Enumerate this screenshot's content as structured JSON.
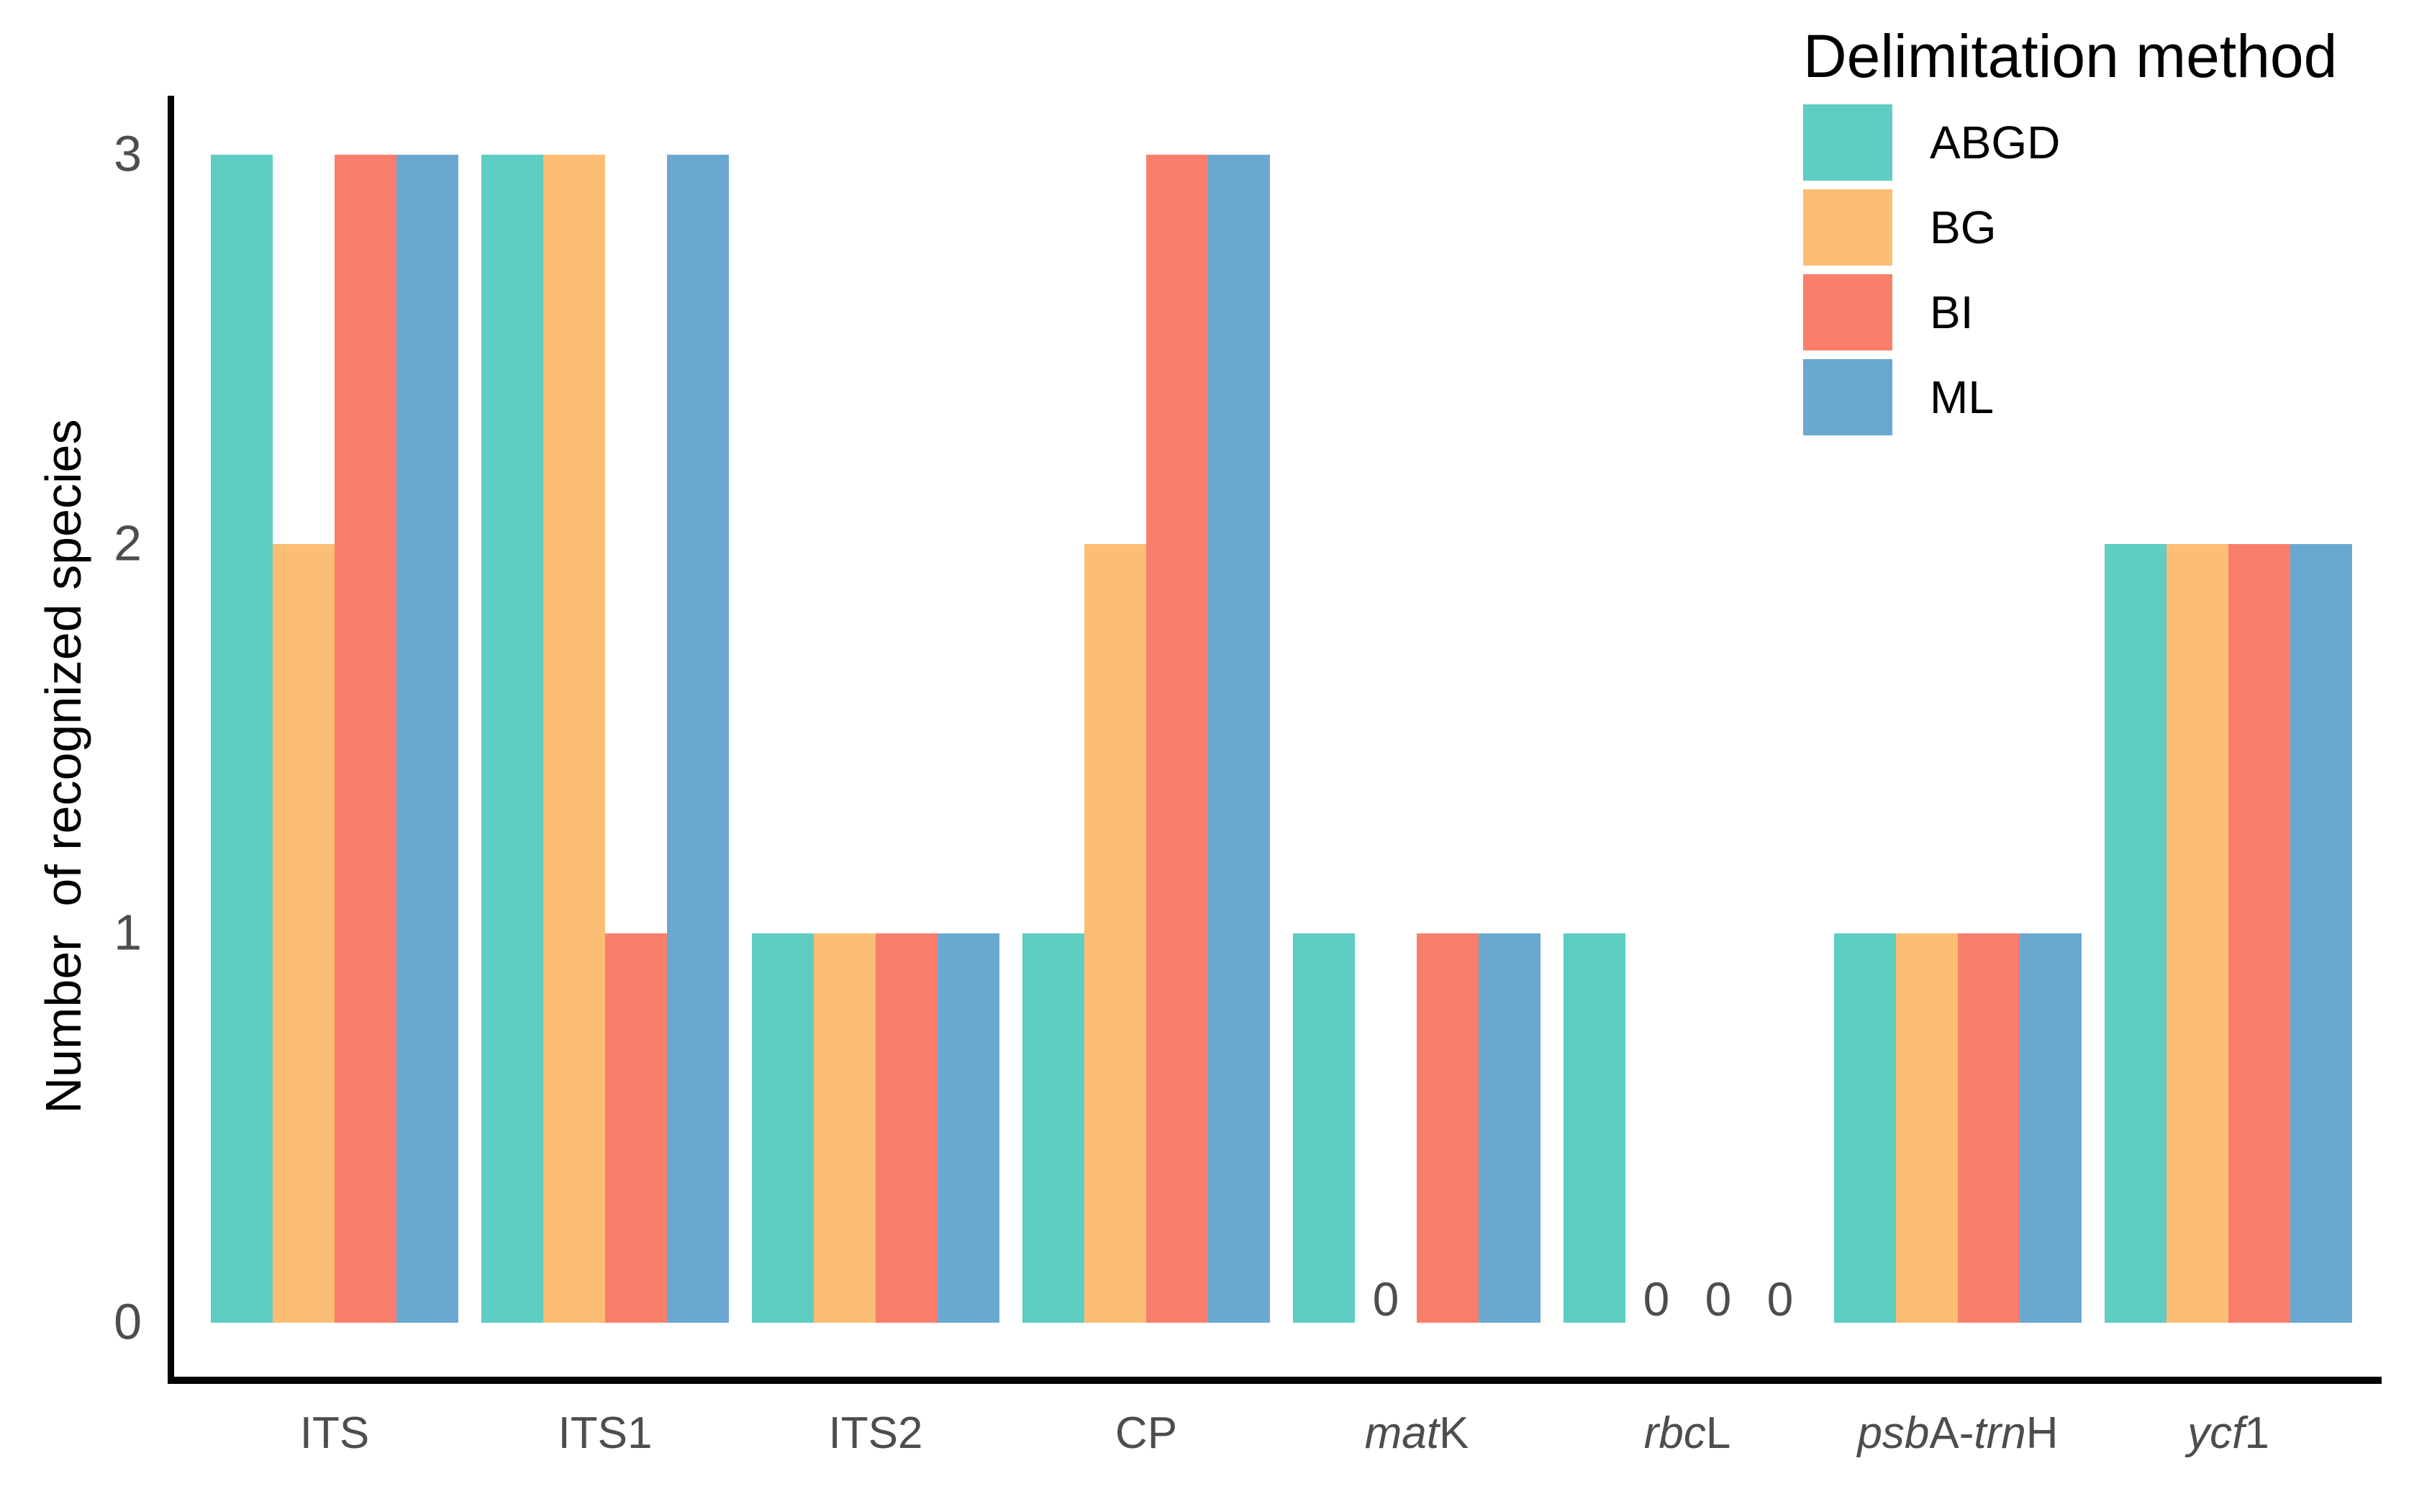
{
  "colors": {
    "background": "#FFFFFF",
    "axis_line": "#000000",
    "tick_text": "#4D4D4D",
    "x_label_text": "#4D4D4D",
    "zero_label_text": "#4D4D4D",
    "legend_text": "#000000",
    "series_abgd": "#5ECDC2",
    "series_bg": "#FCBD74",
    "series_bi": "#FA7E6C",
    "series_ml": "#6AA8D2"
  },
  "chart_data": {
    "type": "bar",
    "title": "",
    "xlabel": "",
    "ylabel": "Number  of recognized species",
    "ylim": [
      0,
      3
    ],
    "yticks": [
      0,
      1,
      2,
      3
    ],
    "grid": false,
    "legend_title": "Delimitation method",
    "legend_position": "top-right",
    "zero_label": "0",
    "categories": [
      "ITS",
      "ITS1",
      "ITS2",
      "CP",
      "matK",
      "rbcL",
      "psbA-trnH",
      "ycf1"
    ],
    "category_parts": [
      {
        "parts": [
          {
            "text": "ITS",
            "italic": false
          }
        ]
      },
      {
        "parts": [
          {
            "text": "ITS1",
            "italic": false
          }
        ]
      },
      {
        "parts": [
          {
            "text": "ITS2",
            "italic": false
          }
        ]
      },
      {
        "parts": [
          {
            "text": "CP",
            "italic": false
          }
        ]
      },
      {
        "parts": [
          {
            "text": "mat",
            "italic": true
          },
          {
            "text": "K",
            "italic": false
          }
        ]
      },
      {
        "parts": [
          {
            "text": "rbc",
            "italic": true
          },
          {
            "text": "L",
            "italic": false
          }
        ]
      },
      {
        "parts": [
          {
            "text": "psb",
            "italic": true
          },
          {
            "text": "A-",
            "italic": false
          },
          {
            "text": "trn",
            "italic": true
          },
          {
            "text": "H",
            "italic": false
          }
        ]
      },
      {
        "parts": [
          {
            "text": "ycf",
            "italic": true
          },
          {
            "text": "1",
            "italic": false
          }
        ]
      }
    ],
    "series": [
      {
        "name": "ABGD",
        "color": "#5ECDC2",
        "values": [
          3,
          3,
          1,
          1,
          1,
          1,
          1,
          2
        ]
      },
      {
        "name": "BG",
        "color": "#FCBD74",
        "values": [
          2,
          3,
          1,
          2,
          0,
          0,
          1,
          2
        ]
      },
      {
        "name": "BI",
        "color": "#FA7E6C",
        "values": [
          3,
          1,
          1,
          3,
          1,
          0,
          1,
          2
        ]
      },
      {
        "name": "ML",
        "color": "#6AA8D2",
        "values": [
          3,
          3,
          1,
          3,
          1,
          0,
          1,
          2
        ]
      }
    ]
  }
}
